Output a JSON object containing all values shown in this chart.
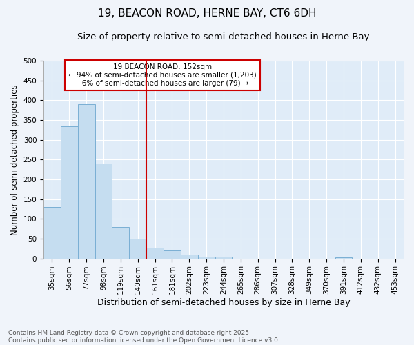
{
  "title": "19, BEACON ROAD, HERNE BAY, CT6 6DH",
  "subtitle": "Size of property relative to semi-detached houses in Herne Bay",
  "xlabel": "Distribution of semi-detached houses by size in Herne Bay",
  "ylabel": "Number of semi-detached properties",
  "bar_color": "#c5ddf0",
  "bar_edge_color": "#7aafd4",
  "background_color": "#f0f4fa",
  "plot_bg_color": "#e0ecf8",
  "grid_color": "#ffffff",
  "vline_color": "#cc0000",
  "vline_x": 6.0,
  "annotation_text": "19 BEACON ROAD: 152sqm\n← 94% of semi-detached houses are smaller (1,203)\n   6% of semi-detached houses are larger (79) →",
  "annotation_box_color": "#ffffff",
  "annotation_box_edge": "#cc0000",
  "categories": [
    "35sqm",
    "56sqm",
    "77sqm",
    "98sqm",
    "119sqm",
    "140sqm",
    "161sqm",
    "181sqm",
    "202sqm",
    "223sqm",
    "244sqm",
    "265sqm",
    "286sqm",
    "307sqm",
    "328sqm",
    "349sqm",
    "370sqm",
    "391sqm",
    "412sqm",
    "432sqm",
    "453sqm"
  ],
  "values": [
    130,
    335,
    390,
    240,
    79,
    50,
    27,
    20,
    10,
    4,
    5,
    0,
    0,
    0,
    0,
    0,
    0,
    3,
    0,
    0,
    0
  ],
  "ylim": [
    0,
    500
  ],
  "yticks": [
    0,
    50,
    100,
    150,
    200,
    250,
    300,
    350,
    400,
    450,
    500
  ],
  "footer_text": "Contains HM Land Registry data © Crown copyright and database right 2025.\nContains public sector information licensed under the Open Government Licence v3.0.",
  "title_fontsize": 11,
  "subtitle_fontsize": 9.5,
  "tick_fontsize": 7.5,
  "ylabel_fontsize": 8.5,
  "xlabel_fontsize": 9,
  "footer_fontsize": 6.5
}
